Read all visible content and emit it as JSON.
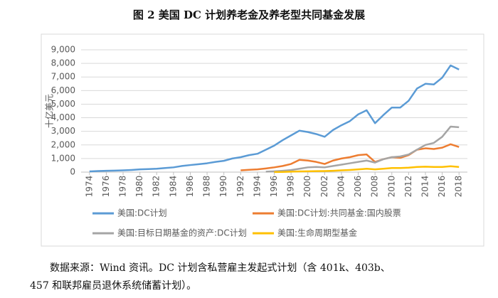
{
  "chart_data": {
    "type": "line",
    "title": "图 2  美国 DC 计划养老金及养老型共同基金发展",
    "y_label": "十亿美元",
    "x": [
      1974,
      1975,
      1976,
      1977,
      1978,
      1979,
      1980,
      1981,
      1982,
      1983,
      1984,
      1985,
      1986,
      1987,
      1988,
      1989,
      1990,
      1991,
      1992,
      1993,
      1994,
      1995,
      1996,
      1997,
      1998,
      1999,
      2000,
      2001,
      2002,
      2003,
      2004,
      2005,
      2006,
      2007,
      2008,
      2009,
      2010,
      2011,
      2012,
      2013,
      2014,
      2015,
      2016,
      2017,
      2018
    ],
    "xlim": [
      1973,
      2019
    ],
    "xticks": [
      1974,
      1976,
      1978,
      1980,
      1982,
      1984,
      1986,
      1988,
      1990,
      1992,
      1994,
      1996,
      1998,
      2000,
      2002,
      2004,
      2006,
      2008,
      2010,
      2012,
      2014,
      2016,
      2018
    ],
    "ylim": [
      0,
      9000
    ],
    "yticks": [
      0,
      {
        "value": 1000,
        "label": "1,000"
      },
      {
        "value": 2000,
        "label": "2,000"
      },
      {
        "value": 3000,
        "label": "3,000"
      },
      {
        "value": 4000,
        "label": "4,000"
      },
      {
        "value": 5000,
        "label": "5,000"
      },
      {
        "value": 6000,
        "label": "6,000"
      },
      {
        "value": 7000,
        "label": "7,000"
      },
      {
        "value": 8000,
        "label": "8,000"
      },
      {
        "value": 9000,
        "label": "9,000"
      }
    ],
    "grid": true,
    "legend": "bottom",
    "series": [
      {
        "name": "美国:DC计划",
        "color": "#5b9bd5",
        "values": [
          50,
          80,
          100,
          110,
          130,
          160,
          200,
          220,
          250,
          300,
          350,
          450,
          520,
          580,
          650,
          750,
          830,
          1000,
          1100,
          1250,
          1350,
          1650,
          1950,
          2350,
          2700,
          3050,
          2950,
          2800,
          2600,
          3100,
          3450,
          3750,
          4250,
          4550,
          3600,
          4200,
          4750,
          4750,
          5250,
          6150,
          6500,
          6450,
          6950,
          7850,
          7550
        ]
      },
      {
        "name": "美国:DC计划:共同基金:国内股票",
        "color": "#ed7d31",
        "values": [
          null,
          null,
          null,
          null,
          null,
          null,
          null,
          null,
          null,
          null,
          null,
          null,
          null,
          null,
          null,
          null,
          null,
          null,
          130,
          170,
          200,
          270,
          350,
          450,
          600,
          900,
          850,
          750,
          600,
          850,
          1000,
          1100,
          1250,
          1300,
          750,
          950,
          1100,
          1050,
          1250,
          1650,
          1750,
          1700,
          1800,
          2050,
          1850
        ]
      },
      {
        "name": "美国:目标日期基金的资产:DC计划",
        "color": "#a5a5a5",
        "values": [
          null,
          null,
          null,
          null,
          null,
          null,
          null,
          null,
          null,
          null,
          null,
          null,
          null,
          null,
          null,
          null,
          null,
          null,
          null,
          null,
          null,
          30,
          60,
          100,
          150,
          250,
          350,
          380,
          350,
          450,
          550,
          650,
          750,
          850,
          700,
          950,
          1100,
          1150,
          1300,
          1650,
          2000,
          2150,
          2600,
          3350,
          3300
        ]
      },
      {
        "name": "美国:生命周期型基金",
        "color": "#ffc000",
        "values": [
          null,
          null,
          null,
          null,
          null,
          null,
          null,
          null,
          null,
          null,
          null,
          null,
          null,
          null,
          null,
          null,
          null,
          null,
          null,
          null,
          null,
          null,
          5,
          10,
          30,
          50,
          60,
          70,
          80,
          100,
          130,
          160,
          200,
          250,
          200,
          250,
          300,
          300,
          330,
          380,
          400,
          380,
          380,
          430,
          380
        ]
      }
    ]
  },
  "source": [
    "数据来源：Wind 资讯。DC 计划含私营雇主发起式计划（含 401k、403b、",
    "457 和联邦雇员退休系统储蓄计划）。"
  ]
}
